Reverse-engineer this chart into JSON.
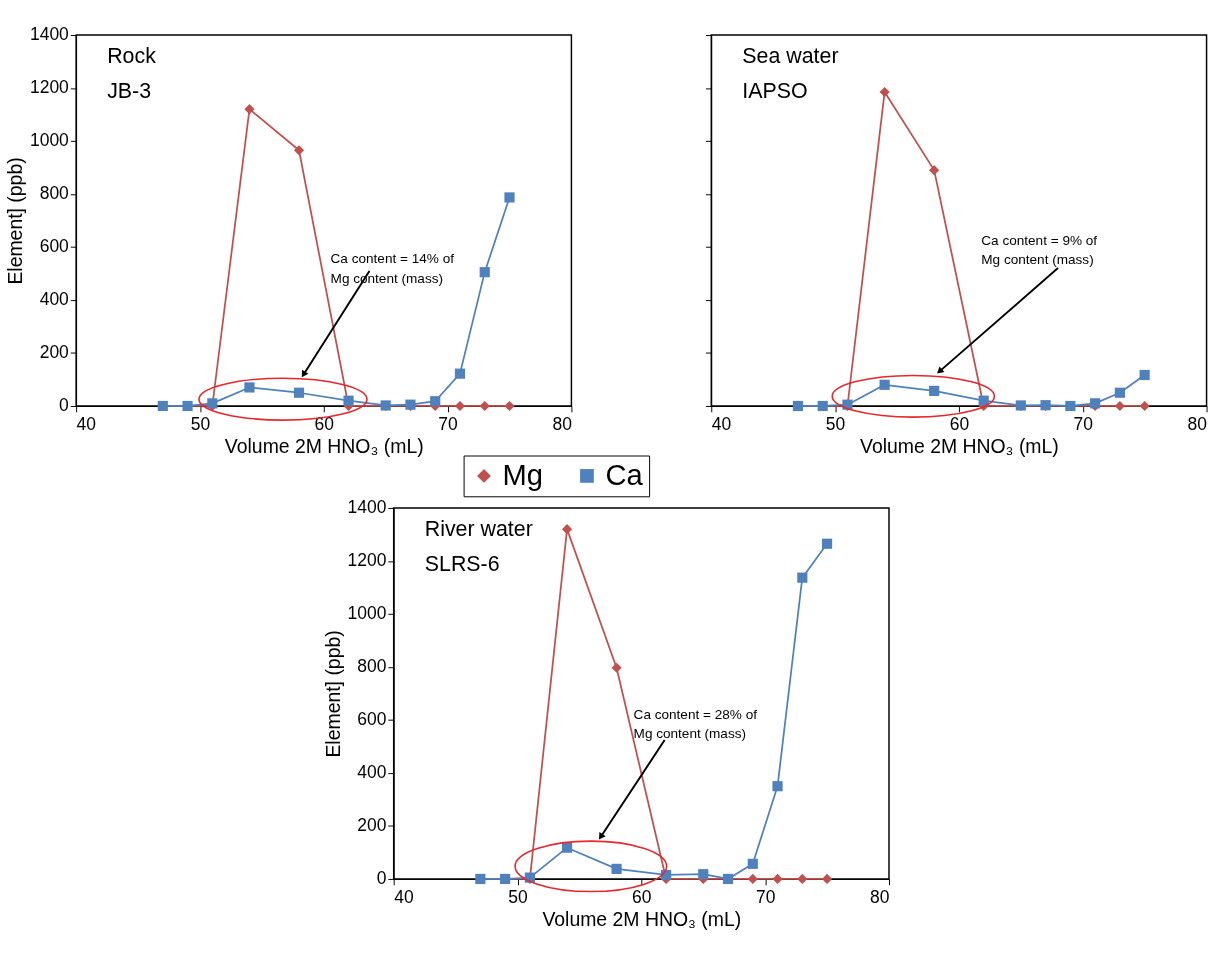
{
  "chart_data": [
    {
      "type": "line",
      "title": "Rock\nJB-3",
      "xlabel": "Volume 2M HNO₃ (mL)",
      "ylabel": "Element] (ppb)",
      "xlim": [
        40,
        80
      ],
      "xticks": [
        40,
        50,
        60,
        70,
        80
      ],
      "ylim": [
        0,
        1400
      ],
      "yticks": [
        0,
        200,
        400,
        600,
        800,
        1000,
        1200,
        1400
      ],
      "legend": "bottom right",
      "x": [
        47,
        49,
        51,
        54,
        58,
        62,
        65,
        67,
        69,
        71,
        73,
        75
      ],
      "series": [
        {
          "name": "Mg",
          "color": "#c0504d",
          "marker": "diamond",
          "values": [
            0,
            0,
            0,
            1120,
            965,
            0,
            0,
            0,
            0,
            0,
            0,
            0
          ]
        },
        {
          "name": "Ca",
          "color": "#4f81bd",
          "marker": "square",
          "values": [
            0,
            0,
            10,
            70,
            50,
            20,
            2,
            5,
            18,
            122,
            505,
            787
          ]
        }
      ],
      "annotations": [
        "Ca content = 14% of\nMg content (mass)"
      ]
    },
    {
      "type": "line",
      "title": "Sea water\nIAPSO",
      "xlabel": "Volume 2M HNO₃ (mL)",
      "xlim": [
        40,
        80
      ],
      "xticks": [
        40,
        50,
        60,
        70,
        80
      ],
      "ylim": [
        0,
        1400
      ],
      "yticks": [
        0,
        200,
        400,
        600,
        800,
        1000,
        1200,
        1400
      ],
      "tick_labels": "x",
      "x": [
        47,
        49,
        51,
        54,
        58,
        62,
        65,
        67,
        69,
        71,
        73,
        75
      ],
      "series": [
        {
          "color": "#c0504d",
          "marker": "diamond",
          "values": [
            0,
            0,
            0,
            1185,
            890,
            0,
            0,
            0,
            0,
            0,
            0,
            0
          ]
        },
        {
          "color": "#4f81bd",
          "marker": "square",
          "values": [
            0,
            0,
            5,
            80,
            57,
            20,
            2,
            3,
            0,
            10,
            50,
            117
          ]
        }
      ],
      "annotations": [
        "Ca content = 9% of\nMg content (mass)"
      ]
    },
    {
      "type": "line",
      "title": "River water\nSLRS-6",
      "xlabel": "Volume 2M HNO₃ (mL)",
      "ylabel": "Element] (ppb)",
      "xlim": [
        40,
        80
      ],
      "xticks": [
        40,
        50,
        60,
        70,
        80
      ],
      "ylim": [
        0,
        1400
      ],
      "yticks": [
        0,
        200,
        400,
        600,
        800,
        1000,
        1200,
        1400
      ],
      "x": [
        47,
        49,
        51,
        54,
        58,
        62,
        65,
        67,
        69,
        71,
        73,
        75
      ],
      "series": [
        {
          "color": "#c0504d",
          "marker": "diamond",
          "values": [
            0,
            0,
            0,
            1320,
            797,
            0,
            0,
            0,
            0,
            0,
            0,
            0
          ]
        },
        {
          "color": "#4f81bd",
          "marker": "square",
          "values": [
            0,
            0,
            5,
            118,
            38,
            15,
            18,
            0,
            57,
            350,
            1137,
            1265
          ]
        }
      ],
      "annotations": [
        "Ca content = 28% of\nMg content (mass)"
      ]
    }
  ]
}
